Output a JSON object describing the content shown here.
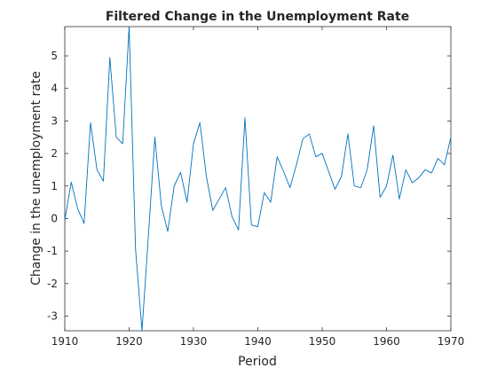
{
  "chart_data": {
    "type": "line",
    "title": "Filtered Change in the Unemployment Rate",
    "xlabel": "Period",
    "ylabel": "Change in the unemployment rate",
    "xlim": [
      1910,
      1970
    ],
    "ylim": [
      -3.45,
      5.9
    ],
    "xticks": [
      1910,
      1920,
      1930,
      1940,
      1950,
      1960,
      1970
    ],
    "yticks": [
      -3,
      -2,
      -1,
      0,
      1,
      2,
      3,
      4,
      5
    ],
    "grid": false,
    "line_color": "#0072BD",
    "series": [
      {
        "x": [
          1910,
          1911,
          1912,
          1913,
          1914,
          1915,
          1916,
          1917,
          1918,
          1919,
          1920,
          1921,
          1922,
          1923,
          1924,
          1925,
          1926,
          1927,
          1928,
          1929,
          1930,
          1931,
          1932,
          1933,
          1934,
          1935,
          1936,
          1937,
          1938,
          1939,
          1940,
          1941,
          1942,
          1943,
          1944,
          1945,
          1946,
          1947,
          1948,
          1949,
          1950,
          1951,
          1952,
          1953,
          1954,
          1955,
          1956,
          1957,
          1958,
          1959,
          1960,
          1961,
          1962,
          1963,
          1964,
          1965,
          1966,
          1967,
          1968,
          1969,
          1970
        ],
        "values": [
          -0.05,
          1.12,
          0.3,
          -0.15,
          2.95,
          1.5,
          1.15,
          4.95,
          2.5,
          2.3,
          5.9,
          -0.95,
          -3.45,
          -0.5,
          2.5,
          0.4,
          -0.4,
          1.0,
          1.42,
          0.5,
          2.3,
          2.95,
          1.3,
          0.25,
          0.6,
          0.95,
          0.05,
          -0.35,
          3.1,
          -0.2,
          -0.25,
          0.8,
          0.5,
          1.9,
          1.45,
          0.95,
          1.65,
          2.45,
          2.6,
          1.9,
          2.0,
          1.45,
          0.9,
          1.3,
          2.6,
          1.0,
          0.95,
          1.5,
          2.85,
          0.65,
          1.0,
          1.95,
          0.6,
          1.5,
          1.1,
          1.25,
          1.5,
          1.4,
          1.85,
          1.65,
          2.5
        ]
      }
    ]
  }
}
